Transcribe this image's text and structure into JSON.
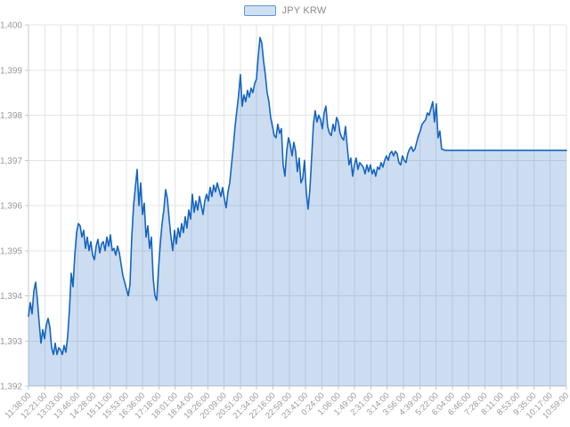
{
  "chart_data": {
    "type": "area",
    "title": "",
    "legend_label": "JPY KRW",
    "legend_position": "top-center",
    "grid": true,
    "colors": {
      "line": "#1565c0",
      "fill_opacity": 0.22,
      "grid": "#e4e4e4",
      "axis": "#c8c8c8",
      "tick_text": "#9a9a9a",
      "legend_text": "#8a8a8a",
      "legend_swatch_fill": "#cfe0f3",
      "legend_swatch_border": "#5b96d6"
    },
    "y_axis": {
      "min": 1392,
      "max": 1400,
      "tick_values": [
        1392,
        1393,
        1394,
        1395,
        1396,
        1397,
        1398,
        1399,
        1400
      ],
      "tick_labels": [
        "1,392",
        "1,393",
        "1,394",
        "1,395",
        "1,396",
        "1,397",
        "1,398",
        "1,399",
        "1,400"
      ]
    },
    "x_axis": {
      "labels": [
        "11:38:00",
        "12:21:00",
        "13:03:00",
        "13:46:00",
        "14:28:00",
        "15:11:00",
        "15:53:00",
        "16:36:00",
        "17:18:00",
        "18:01:00",
        "18:44:00",
        "19:26:00",
        "20:09:00",
        "20:51:00",
        "21:34:00",
        "22:16:00",
        "22:59:00",
        "23:41:00",
        "0:24:00",
        "1:06:00",
        "1:49:00",
        "2:31:00",
        "3:14:00",
        "3:56:00",
        "4:39:00",
        "5:22:00",
        "6:04:00",
        "6:46:00",
        "7:28:00",
        "8:11:00",
        "8:53:00",
        "9:35:00",
        "10:17:00",
        "10:59:00"
      ]
    },
    "series": {
      "name": "JPY KRW",
      "x_start_frac": 0.0,
      "x_end_frac": 0.768,
      "values": [
        1393.55,
        1393.85,
        1393.6,
        1394.1,
        1394.3,
        1393.9,
        1393.4,
        1392.95,
        1393.25,
        1393.05,
        1393.35,
        1393.5,
        1393.3,
        1392.85,
        1392.7,
        1392.95,
        1392.7,
        1392.85,
        1392.8,
        1392.7,
        1392.9,
        1392.75,
        1393.1,
        1393.7,
        1394.5,
        1394.2,
        1394.9,
        1395.4,
        1395.6,
        1395.55,
        1395.3,
        1395.45,
        1395.05,
        1395.3,
        1395.0,
        1395.2,
        1394.9,
        1394.8,
        1395.1,
        1395.25,
        1394.95,
        1395.15,
        1395.2,
        1395.0,
        1395.3,
        1395.1,
        1395.35,
        1395.0,
        1395.05,
        1394.9,
        1395.1,
        1394.95,
        1394.7,
        1394.45,
        1394.3,
        1394.15,
        1394.0,
        1394.25,
        1395.3,
        1396.0,
        1396.4,
        1396.8,
        1396.0,
        1396.5,
        1395.8,
        1396.05,
        1395.3,
        1395.55,
        1395.05,
        1395.3,
        1394.4,
        1394.0,
        1393.9,
        1394.6,
        1395.15,
        1395.6,
        1395.9,
        1396.35,
        1396.15,
        1395.7,
        1395.3,
        1395.0,
        1395.45,
        1395.15,
        1395.5,
        1395.3,
        1395.6,
        1395.4,
        1395.75,
        1395.5,
        1395.9,
        1395.7,
        1396.25,
        1395.85,
        1396.1,
        1395.9,
        1396.2,
        1396.0,
        1395.8,
        1396.1,
        1396.25,
        1396.1,
        1396.4,
        1396.2,
        1396.45,
        1396.3,
        1396.5,
        1396.35,
        1396.2,
        1396.4,
        1396.15,
        1395.95,
        1396.3,
        1396.5,
        1396.9,
        1397.3,
        1397.75,
        1398.1,
        1398.45,
        1398.9,
        1398.2,
        1398.45,
        1398.3,
        1398.55,
        1398.4,
        1398.6,
        1398.5,
        1398.7,
        1398.8,
        1399.3,
        1399.72,
        1399.6,
        1399.2,
        1398.9,
        1398.5,
        1398.3,
        1397.95,
        1397.75,
        1397.55,
        1397.5,
        1397.8,
        1397.6,
        1397.7,
        1396.9,
        1396.65,
        1397.2,
        1397.5,
        1397.35,
        1397.1,
        1397.4,
        1397.2,
        1396.75,
        1397.05,
        1396.5,
        1396.6,
        1397.0,
        1396.3,
        1395.92,
        1396.35,
        1397.05,
        1397.8,
        1398.1,
        1397.85,
        1398.0,
        1397.9,
        1397.7,
        1398.05,
        1398.2,
        1397.75,
        1397.6,
        1397.55,
        1397.8,
        1397.65,
        1397.95,
        1397.85,
        1397.6,
        1397.5,
        1397.45,
        1397.75,
        1397.3,
        1396.9,
        1397.05,
        1396.65,
        1396.9,
        1397.05,
        1396.8,
        1396.95,
        1396.9,
        1396.85,
        1396.7,
        1396.9,
        1396.75,
        1396.9,
        1396.7,
        1396.8,
        1396.65,
        1396.85,
        1396.8,
        1396.95,
        1396.85,
        1397.0,
        1397.1,
        1397.0,
        1397.15,
        1397.2,
        1397.1,
        1397.2,
        1397.15,
        1396.95,
        1396.9,
        1397.1,
        1397.0,
        1396.95,
        1397.15,
        1397.25,
        1397.3,
        1397.2,
        1397.25,
        1397.4,
        1397.55,
        1397.65,
        1397.8,
        1397.85,
        1397.9,
        1398.05,
        1398.0,
        1398.15,
        1398.3,
        1397.85,
        1398.25,
        1397.5,
        1397.65,
        1397.25
      ],
      "tail": {
        "start_frac": 0.775,
        "end_frac": 1.0,
        "value": 1397.22
      }
    }
  }
}
